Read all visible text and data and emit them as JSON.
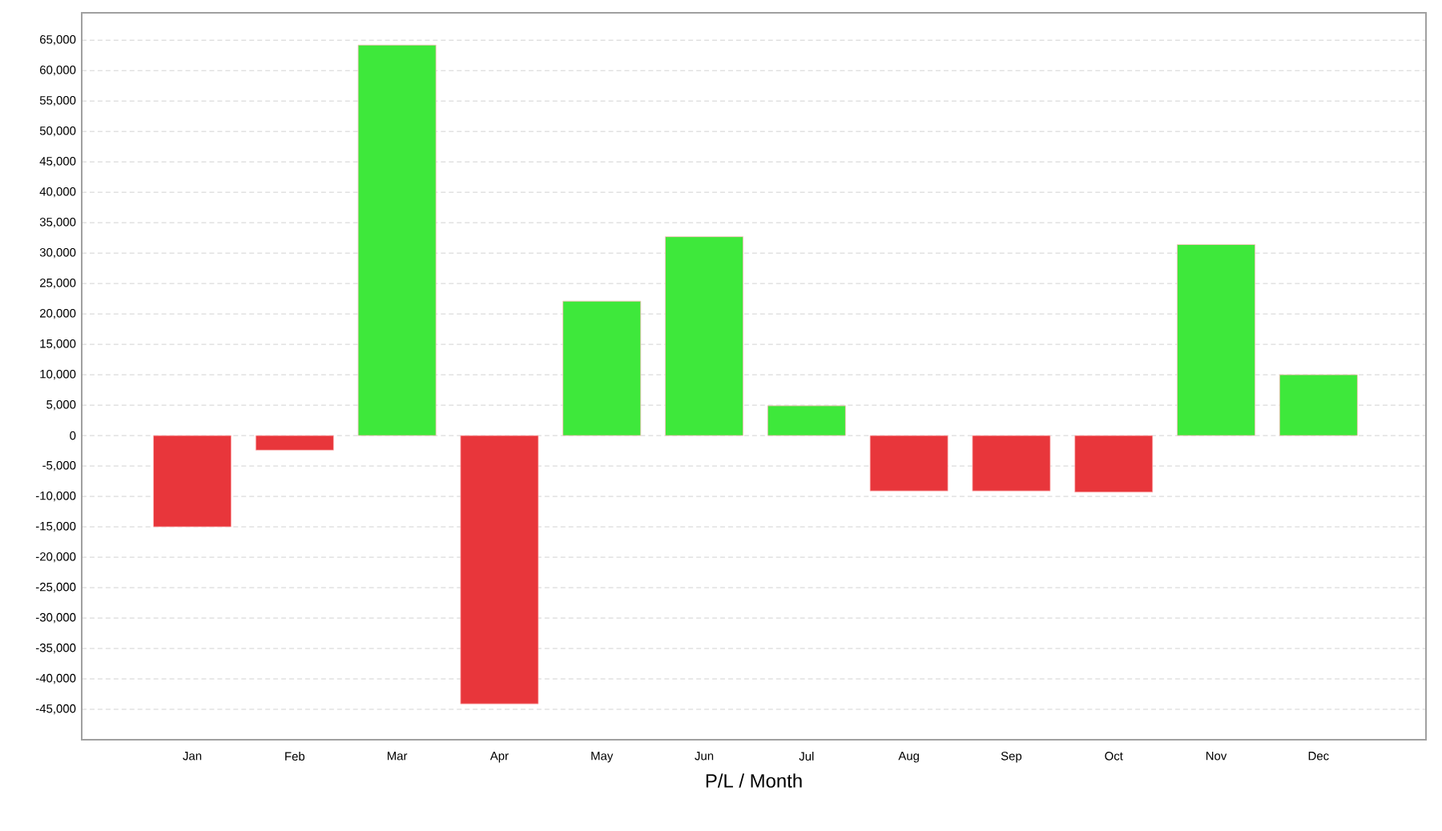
{
  "chart_data": {
    "type": "bar",
    "xlabel": "P/L / Month",
    "categories": [
      "Jan",
      "Feb",
      "Mar",
      "Apr",
      "May",
      "Jun",
      "Jul",
      "Aug",
      "Sep",
      "Oct",
      "Nov",
      "Dec"
    ],
    "values": [
      -15000,
      -2400,
      64200,
      -44100,
      22100,
      32700,
      4900,
      -9100,
      -9100,
      -9300,
      31400,
      10000
    ],
    "colors": [
      "#e8363b",
      "#e8363b",
      "#3ee83b",
      "#e8363b",
      "#3ee83b",
      "#3ee83b",
      "#3ee83b",
      "#e8363b",
      "#e8363b",
      "#e8363b",
      "#3ee83b",
      "#3ee83b"
    ],
    "ylim": [
      -50000,
      69500
    ],
    "yticks": [
      {
        "value": -45000,
        "label": "-45,000"
      },
      {
        "value": -40000,
        "label": "-40,000"
      },
      {
        "value": -35000,
        "label": "-35,000"
      },
      {
        "value": -30000,
        "label": "-30,000"
      },
      {
        "value": -25000,
        "label": "-25,000"
      },
      {
        "value": -20000,
        "label": "-20,000"
      },
      {
        "value": -15000,
        "label": "-15,000"
      },
      {
        "value": -10000,
        "label": "-10,000"
      },
      {
        "value": -5000,
        "label": "-5,000"
      },
      0,
      {
        "value": 5000,
        "label": "5,000"
      },
      {
        "value": 10000,
        "label": "10,000"
      },
      {
        "value": 15000,
        "label": "15,000"
      },
      {
        "value": 20000,
        "label": "20,000"
      },
      {
        "value": 25000,
        "label": "25,000"
      },
      {
        "value": 30000,
        "label": "30,000"
      },
      {
        "value": 35000,
        "label": "35,000"
      },
      {
        "value": 40000,
        "label": "40,000"
      },
      {
        "value": 45000,
        "label": "45,000"
      },
      {
        "value": 50000,
        "label": "50,000"
      },
      {
        "value": 55000,
        "label": "55,000"
      },
      {
        "value": 60000,
        "label": "60,000"
      },
      {
        "value": 65000,
        "label": "65,000"
      }
    ],
    "grid": "y"
  }
}
